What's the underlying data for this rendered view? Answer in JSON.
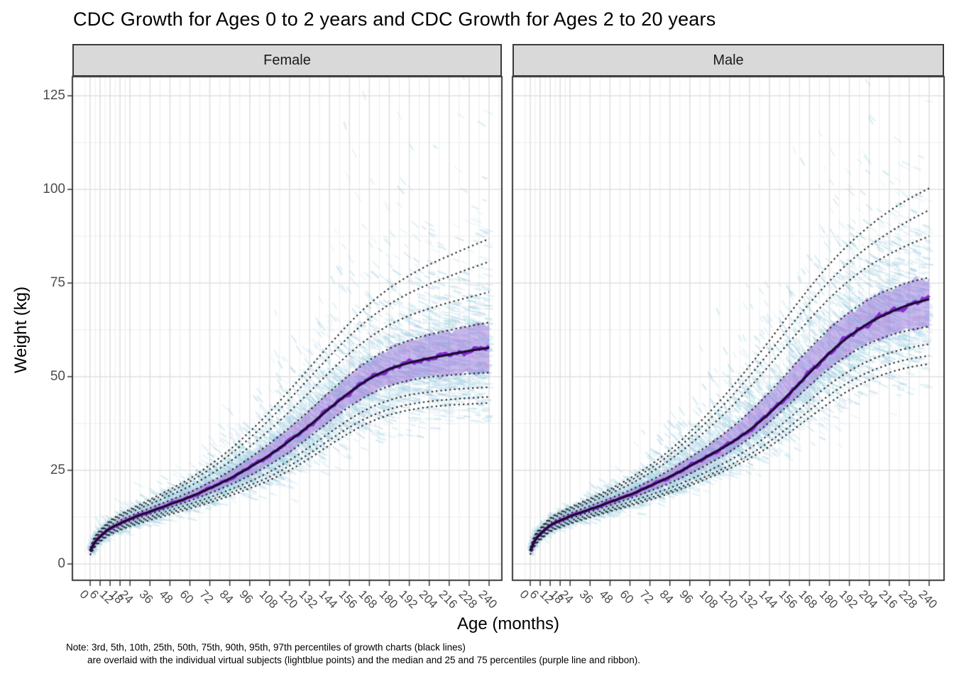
{
  "title": "CDC Growth for Ages 0 to 2 years and CDC Growth for Ages 2 to 20 years",
  "axis": {
    "x_label": "Age (months)",
    "y_label": "Weight (kg)",
    "x_ticks": [
      0,
      6,
      12,
      18,
      24,
      36,
      48,
      60,
      72,
      84,
      96,
      108,
      120,
      132,
      144,
      156,
      168,
      180,
      192,
      204,
      216,
      228,
      240
    ],
    "y_ticks": [
      0,
      25,
      50,
      75,
      100,
      125
    ]
  },
  "note": {
    "line1": "Note: 3rd, 5th, 10th, 25th, 50th, 75th, 90th, 95th, 97th percentiles of growth charts (black lines)",
    "line2": "are overlaid with the individual virtual subjects (lightblue points) and the median and 25 and 75 percentiles (purple line and ribbon)."
  },
  "colors": {
    "strip_bg": "#d9d9d9",
    "panel_border": "#3a3a3a",
    "grid_major": "#e0e0e0",
    "grid_minor": "#eeeeee",
    "percentile_dotted": "#1a1a1a",
    "subject_point": "#a6d4e4",
    "ribbon_purple": "#9370db",
    "median_wiggly_purple": "#8223d2",
    "median_smooth_dark": "#1b0b2e",
    "tick_label": "#4d4d4d"
  },
  "chart_data": {
    "type": "line",
    "title": "CDC Growth for Ages 0 to 2 years and CDC Growth for Ages 2 to 20 years",
    "xlabel": "Age (months)",
    "ylabel": "Weight (kg)",
    "facets": [
      "Female",
      "Male"
    ],
    "grid": true,
    "legend_position": "none",
    "x_ticks": [
      0,
      6,
      12,
      18,
      24,
      36,
      48,
      60,
      72,
      84,
      96,
      108,
      120,
      132,
      144,
      156,
      168,
      180,
      192,
      204,
      216,
      228,
      240
    ],
    "y_ticks": [
      0,
      25,
      50,
      75,
      100,
      125
    ],
    "xlim_months": [
      0,
      240
    ],
    "ylim_kg": [
      0,
      130
    ],
    "percentile_labels": [
      "3rd",
      "5th",
      "10th",
      "25th",
      "50th",
      "75th",
      "90th",
      "95th",
      "97th"
    ],
    "overlay_description": {
      "black_dotted_lines": "CDC growth chart percentiles",
      "lightblue_points": "individual virtual subjects",
      "purple_line_and_ribbon": "median and 25 and 75 percentiles of virtual subjects"
    },
    "ages_months": [
      0,
      3,
      6,
      12,
      18,
      24,
      36,
      48,
      60,
      72,
      84,
      96,
      108,
      120,
      132,
      144,
      156,
      168,
      180,
      192,
      204,
      216,
      228,
      240
    ],
    "series": [
      {
        "facet": "Female",
        "name": "P3",
        "values": [
          2.4,
          4.6,
          5.9,
          7.8,
          9.0,
          10.0,
          11.7,
          13.2,
          14.8,
          16.4,
          18.2,
          20.2,
          22.4,
          25.0,
          28.2,
          31.7,
          35.0,
          37.8,
          39.8,
          41.1,
          41.9,
          42.4,
          42.7,
          43.0
        ]
      },
      {
        "facet": "Female",
        "name": "P5",
        "values": [
          2.5,
          4.8,
          6.1,
          8.1,
          9.3,
          10.4,
          12.1,
          13.7,
          15.3,
          17.0,
          18.9,
          21.0,
          23.3,
          26.2,
          29.5,
          33.1,
          36.5,
          39.3,
          41.3,
          42.6,
          43.4,
          43.9,
          44.3,
          44.6
        ]
      },
      {
        "facet": "Female",
        "name": "P10",
        "values": [
          2.7,
          5.1,
          6.4,
          8.5,
          9.8,
          10.8,
          12.6,
          14.3,
          16.0,
          17.8,
          19.8,
          22.0,
          24.6,
          27.7,
          31.2,
          35.0,
          38.6,
          41.6,
          43.7,
          45.1,
          45.9,
          46.5,
          46.9,
          47.2
        ]
      },
      {
        "facet": "Female",
        "name": "P25",
        "values": [
          3.0,
          5.5,
          6.9,
          9.0,
          10.3,
          11.4,
          13.3,
          15.1,
          16.9,
          18.9,
          21.1,
          23.6,
          26.5,
          29.9,
          33.9,
          38.1,
          42.0,
          45.2,
          47.5,
          49.0,
          49.9,
          50.4,
          50.8,
          51.1
        ]
      },
      {
        "facet": "Female",
        "name": "P50",
        "values": [
          3.4,
          5.9,
          7.3,
          9.5,
          10.8,
          12.0,
          14.0,
          15.9,
          17.9,
          20.2,
          22.8,
          25.8,
          29.1,
          32.9,
          37.0,
          41.5,
          45.8,
          49.4,
          52.0,
          53.7,
          54.9,
          55.9,
          56.9,
          57.7
        ]
      },
      {
        "facet": "Female",
        "name": "P75",
        "values": [
          3.7,
          6.4,
          7.9,
          10.2,
          11.6,
          12.8,
          14.9,
          17.0,
          19.2,
          21.8,
          24.8,
          28.3,
          32.2,
          36.4,
          41.0,
          45.9,
          50.5,
          54.4,
          57.5,
          59.7,
          61.2,
          62.4,
          63.5,
          64.5
        ]
      },
      {
        "facet": "Female",
        "name": "P90",
        "values": [
          4.0,
          6.9,
          8.4,
          10.9,
          12.4,
          13.7,
          16.0,
          18.3,
          20.8,
          23.8,
          27.3,
          31.3,
          35.8,
          40.7,
          45.9,
          51.2,
          56.2,
          60.4,
          63.8,
          66.3,
          68.2,
          69.8,
          71.2,
          72.6
        ]
      },
      {
        "facet": "Female",
        "name": "P95",
        "values": [
          4.2,
          7.2,
          8.7,
          11.3,
          12.9,
          14.2,
          16.7,
          19.2,
          22.0,
          25.3,
          29.2,
          33.6,
          38.6,
          44.0,
          49.7,
          55.4,
          60.8,
          65.5,
          69.3,
          72.3,
          74.7,
          76.8,
          78.8,
          80.7
        ]
      },
      {
        "facet": "Female",
        "name": "P97",
        "values": [
          4.3,
          7.4,
          9.0,
          11.6,
          13.2,
          14.6,
          17.2,
          19.9,
          22.8,
          26.4,
          30.5,
          35.3,
          40.6,
          46.4,
          52.4,
          58.5,
          64.3,
          69.4,
          73.6,
          77.0,
          79.9,
          82.3,
          84.6,
          86.8
        ]
      },
      {
        "facet": "Male",
        "name": "P3",
        "values": [
          2.5,
          5.0,
          6.4,
          8.6,
          9.7,
          10.7,
          12.4,
          14.0,
          15.5,
          17.1,
          18.9,
          20.9,
          23.1,
          25.5,
          28.2,
          31.4,
          35.1,
          39.1,
          43.0,
          46.4,
          49.1,
          51.1,
          52.5,
          53.4
        ]
      },
      {
        "facet": "Male",
        "name": "P5",
        "values": [
          2.6,
          5.2,
          6.6,
          8.8,
          10.0,
          11.0,
          12.7,
          14.3,
          15.9,
          17.6,
          19.4,
          21.5,
          23.8,
          26.3,
          29.2,
          32.7,
          36.7,
          41.0,
          45.1,
          48.6,
          51.3,
          53.3,
          54.7,
          55.6
        ]
      },
      {
        "facet": "Male",
        "name": "P10",
        "values": [
          2.8,
          5.5,
          6.9,
          9.2,
          10.4,
          11.5,
          13.2,
          14.9,
          16.6,
          18.4,
          20.3,
          22.5,
          25.0,
          27.7,
          30.9,
          34.7,
          39.0,
          43.6,
          47.9,
          51.5,
          54.3,
          56.3,
          57.7,
          58.7
        ]
      },
      {
        "facet": "Male",
        "name": "P25",
        "values": [
          3.1,
          5.9,
          7.4,
          9.7,
          11.0,
          12.1,
          13.9,
          15.7,
          17.5,
          19.5,
          21.6,
          24.1,
          26.9,
          30.0,
          33.6,
          37.9,
          42.7,
          47.6,
          52.2,
          56.0,
          58.9,
          61.0,
          62.4,
          63.4
        ]
      },
      {
        "facet": "Male",
        "name": "P50",
        "values": [
          3.5,
          6.4,
          7.9,
          10.3,
          11.6,
          12.7,
          14.6,
          16.5,
          18.5,
          20.8,
          23.3,
          26.1,
          29.1,
          32.1,
          35.8,
          40.3,
          45.5,
          51.0,
          56.3,
          60.8,
          64.4,
          67.1,
          69.2,
          70.7
        ]
      },
      {
        "facet": "Male",
        "name": "P75",
        "values": [
          3.8,
          6.9,
          8.5,
          10.9,
          12.3,
          13.5,
          15.5,
          17.5,
          19.7,
          22.2,
          25.1,
          28.4,
          32.0,
          36.0,
          40.6,
          45.9,
          51.7,
          57.5,
          62.8,
          67.2,
          70.7,
          73.3,
          75.2,
          76.5
        ]
      },
      {
        "facet": "Male",
        "name": "P90",
        "values": [
          4.1,
          7.4,
          9.0,
          11.6,
          13.1,
          14.3,
          16.5,
          18.8,
          21.3,
          24.3,
          27.8,
          31.9,
          36.5,
          41.5,
          47.1,
          53.1,
          59.3,
          65.3,
          70.9,
          75.7,
          79.6,
          82.7,
          85.3,
          87.5
        ]
      },
      {
        "facet": "Male",
        "name": "P95",
        "values": [
          4.3,
          7.7,
          9.3,
          12.0,
          13.5,
          14.8,
          17.1,
          19.5,
          22.2,
          25.4,
          29.2,
          33.7,
          38.7,
          44.2,
          50.2,
          56.6,
          63.2,
          69.6,
          75.5,
          80.6,
          84.9,
          88.5,
          91.7,
          94.5
        ]
      },
      {
        "facet": "Male",
        "name": "P97",
        "values": [
          4.4,
          7.9,
          9.5,
          12.3,
          13.8,
          15.1,
          17.5,
          20.0,
          22.9,
          26.3,
          30.4,
          35.2,
          40.6,
          46.5,
          52.9,
          59.7,
          66.8,
          73.7,
          80.0,
          85.5,
          90.2,
          94.2,
          97.5,
          100.3
        ]
      }
    ]
  }
}
